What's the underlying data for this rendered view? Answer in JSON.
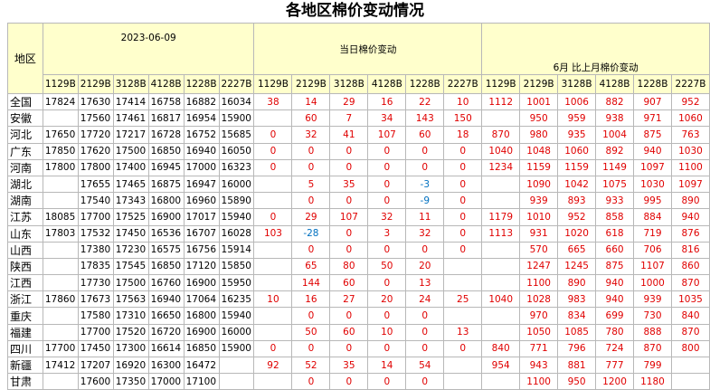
{
  "title": "各地区棉价变动情况",
  "table": {
    "region_header": "地区",
    "groups": [
      {
        "label": "2023-06-09",
        "codes": [
          "1129B",
          "2129B",
          "3128B",
          "4128B",
          "1228B",
          "2227B"
        ]
      },
      {
        "label": "当日棉价变动",
        "codes": [
          "1129B",
          "2129B",
          "3128B",
          "4128B",
          "1228B",
          "2227B"
        ]
      },
      {
        "label": "6月  比上月棉价变动",
        "codes": [
          "1129B",
          "2129B",
          "3128B",
          "4128B",
          "1228B",
          "2227B"
        ]
      }
    ],
    "rows": [
      {
        "region": "全国",
        "cells": [
          [
            17824,
            17630,
            17414,
            16758,
            16882,
            16034
          ],
          [
            38,
            14,
            29,
            16,
            22,
            10
          ],
          [
            1112,
            1001,
            1006,
            882,
            907,
            952
          ]
        ]
      },
      {
        "region": "安徽",
        "cells": [
          [
            null,
            17560,
            17461,
            16817,
            16954,
            15900
          ],
          [
            null,
            60,
            7,
            34,
            143,
            150
          ],
          [
            null,
            950,
            959,
            938,
            971,
            1060
          ]
        ]
      },
      {
        "region": "河北",
        "cells": [
          [
            17650,
            17720,
            17217,
            16728,
            16752,
            15685
          ],
          [
            0,
            32,
            41,
            107,
            60,
            18
          ],
          [
            870,
            980,
            935,
            1004,
            875,
            763
          ]
        ]
      },
      {
        "region": "广东",
        "cells": [
          [
            17850,
            17620,
            17500,
            16850,
            16940,
            16050
          ],
          [
            0,
            0,
            0,
            0,
            0,
            0
          ],
          [
            1040,
            1048,
            1060,
            892,
            940,
            1030
          ]
        ]
      },
      {
        "region": "河南",
        "cells": [
          [
            17800,
            17800,
            17400,
            16945,
            17000,
            16323
          ],
          [
            0,
            0,
            0,
            0,
            0,
            0
          ],
          [
            1234,
            1159,
            1159,
            1149,
            1097,
            1100
          ]
        ]
      },
      {
        "region": "湖北",
        "cells": [
          [
            null,
            17655,
            17465,
            16875,
            16947,
            16000
          ],
          [
            null,
            5,
            35,
            0,
            -3,
            0
          ],
          [
            null,
            1090,
            1042,
            1075,
            1030,
            1097
          ]
        ]
      },
      {
        "region": "湖南",
        "cells": [
          [
            null,
            17540,
            17343,
            16800,
            16960,
            15890
          ],
          [
            null,
            0,
            0,
            0,
            -9,
            0
          ],
          [
            null,
            939,
            893,
            933,
            995,
            890
          ]
        ]
      },
      {
        "region": "江苏",
        "cells": [
          [
            18085,
            17700,
            17525,
            16900,
            17017,
            15940
          ],
          [
            0,
            29,
            107,
            32,
            11,
            0
          ],
          [
            1179,
            1010,
            952,
            858,
            884,
            940
          ]
        ]
      },
      {
        "region": "山东",
        "cells": [
          [
            17803,
            17532,
            17450,
            16536,
            16707,
            16028
          ],
          [
            103,
            -28,
            0,
            3,
            32,
            0
          ],
          [
            1113,
            931,
            1020,
            618,
            719,
            876
          ]
        ]
      },
      {
        "region": "山西",
        "cells": [
          [
            null,
            17380,
            17230,
            16575,
            16756,
            15914
          ],
          [
            null,
            0,
            0,
            0,
            0,
            0
          ],
          [
            null,
            570,
            665,
            660,
            706,
            816
          ]
        ]
      },
      {
        "region": "陕西",
        "cells": [
          [
            null,
            17835,
            17545,
            16850,
            17120,
            15850
          ],
          [
            null,
            65,
            80,
            50,
            20,
            null
          ],
          [
            null,
            1247,
            1245,
            875,
            1107,
            860
          ]
        ]
      },
      {
        "region": "江西",
        "cells": [
          [
            null,
            17730,
            17500,
            16760,
            16900,
            15950
          ],
          [
            null,
            144,
            60,
            0,
            13,
            null
          ],
          [
            null,
            1100,
            890,
            940,
            1000,
            870
          ]
        ]
      },
      {
        "region": "浙江",
        "cells": [
          [
            17860,
            17673,
            17563,
            16940,
            17064,
            16235
          ],
          [
            10,
            16,
            27,
            20,
            24,
            25
          ],
          [
            1040,
            1028,
            983,
            940,
            939,
            1035
          ]
        ]
      },
      {
        "region": "重庆",
        "cells": [
          [
            null,
            17580,
            17310,
            16650,
            16800,
            15940
          ],
          [
            null,
            0,
            0,
            0,
            0,
            null
          ],
          [
            null,
            970,
            834,
            699,
            730,
            840
          ]
        ]
      },
      {
        "region": "福建",
        "cells": [
          [
            null,
            17700,
            17520,
            16720,
            16900,
            16000
          ],
          [
            null,
            50,
            60,
            10,
            0,
            13
          ],
          [
            null,
            1050,
            1085,
            780,
            888,
            870
          ]
        ]
      },
      {
        "region": "四川",
        "cells": [
          [
            17700,
            17450,
            17300,
            16614,
            16850,
            15900
          ],
          [
            0,
            0,
            0,
            0,
            0,
            0
          ],
          [
            840,
            771,
            796,
            724,
            870,
            800
          ]
        ]
      },
      {
        "region": "新疆",
        "cells": [
          [
            17412,
            17207,
            16920,
            16300,
            16472,
            null
          ],
          [
            92,
            52,
            35,
            14,
            54,
            null
          ],
          [
            954,
            943,
            881,
            777,
            799,
            null
          ]
        ]
      },
      {
        "region": "甘肃",
        "cells": [
          [
            null,
            17600,
            17350,
            17000,
            17100,
            null
          ],
          [
            null,
            0,
            0,
            0,
            0,
            null
          ],
          [
            null,
            1100,
            950,
            1200,
            1180,
            null
          ]
        ]
      }
    ]
  }
}
